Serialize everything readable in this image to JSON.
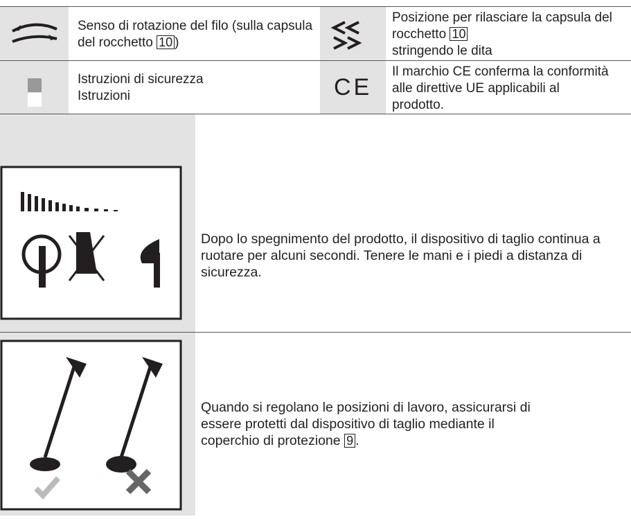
{
  "rows": [
    {
      "cells": [
        {
          "text_before": "Senso di rotazione del filo (sulla capsula del rocchetto",
          "ref": "10",
          "text_after": ")"
        },
        {
          "text_before": "Posizione per rilasciare la capsula del rocchetto",
          "ref": "10",
          "text_after": "stringendo le dita"
        }
      ]
    },
    {
      "cells": [
        {
          "line1": "Istruzioni di sicurezza",
          "line2": "Istruzioni"
        },
        {
          "symbol": "CE",
          "text": "Il marchio CE conferma la conformità alle direttive UE applicabili al prodotto."
        }
      ]
    },
    {
      "text": "Dopo lo spegnimento del prodotto, il dispositivo di taglio continua a ruotare per alcuni secondi. Tenere le mani e i piedi a distanza di sicurezza."
    },
    {
      "text_before": "Quando si regolano le posizioni di lavoro, assicurarsi di essere protetti dal dispositivo di taglio mediante il coperchio di protezione",
      "ref": "9",
      "text_after": "."
    }
  ]
}
